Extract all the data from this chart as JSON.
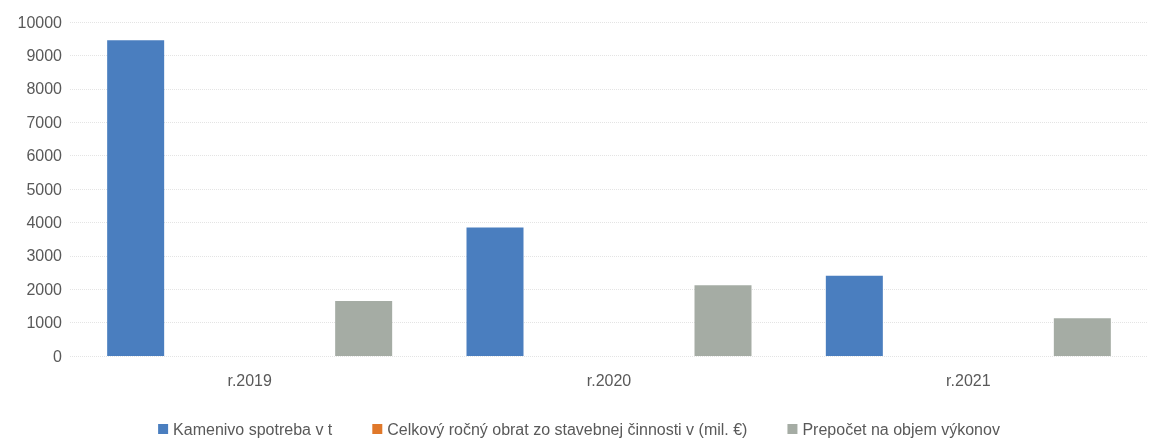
{
  "chart_data": {
    "type": "bar",
    "categories": [
      "r.2019",
      "r.2020",
      "r.2021"
    ],
    "series": [
      {
        "name": "Kamenivo spotreba v t",
        "color": "#4a7ebf",
        "values": [
          9450,
          3850,
          2400
        ]
      },
      {
        "name": "Celkový ročný obrat zo stavebnej činnosti v (mil. €)",
        "color": "#e0782a",
        "values": [
          null,
          null,
          null
        ]
      },
      {
        "name": "Prepočet na objem výkonov",
        "color": "#a5aca4",
        "values": [
          1650,
          2120,
          1130
        ]
      }
    ],
    "ylim": [
      0,
      10000
    ],
    "yticks": [
      0,
      1000,
      2000,
      3000,
      4000,
      5000,
      6000,
      7000,
      8000,
      9000,
      10000
    ],
    "grid": "y",
    "legend": "bottom"
  }
}
